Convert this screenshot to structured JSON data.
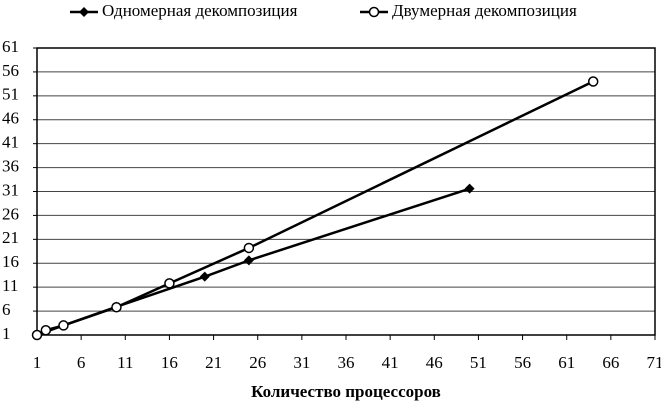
{
  "chart_data": {
    "type": "line",
    "xlabel": "Количество процессоров",
    "xlim": [
      1,
      71
    ],
    "xticks": [
      1,
      6,
      11,
      16,
      21,
      26,
      31,
      36,
      41,
      46,
      51,
      56,
      61,
      66,
      71
    ],
    "ylim": [
      1,
      61
    ],
    "yticks": [
      1,
      6,
      11,
      16,
      21,
      26,
      31,
      36,
      41,
      46,
      51,
      56,
      61
    ],
    "grid": true,
    "series": [
      {
        "name": "Одномерная декомпозиция",
        "color": "#000000",
        "marker": "diamond",
        "x": [
          1,
          4,
          10,
          20,
          25,
          50
        ],
        "values": [
          1,
          3,
          6.9,
          13.2,
          16.6,
          31.6
        ]
      },
      {
        "name": "Двумерная декомпозиция",
        "color": "#000000",
        "marker": "circle",
        "x": [
          1,
          2,
          4,
          10,
          16,
          25,
          64
        ],
        "values": [
          1,
          2,
          3,
          6.8,
          11.8,
          19.2,
          54
        ]
      }
    ]
  }
}
